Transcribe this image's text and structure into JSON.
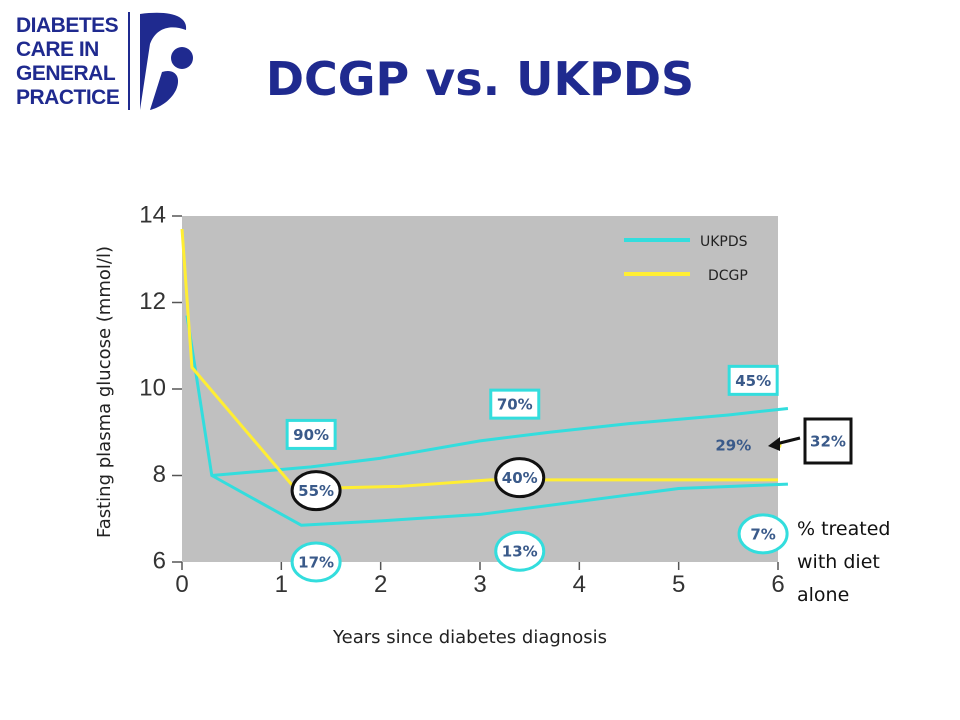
{
  "logo": {
    "lines": [
      "DIABETES",
      "CARE IN",
      "GENERAL",
      "PRACTICE"
    ],
    "brand_color": "#1f2a8f"
  },
  "title": "DCGP vs. UKPDS",
  "chart_data": {
    "type": "line",
    "title": "DCGP vs. UKPDS",
    "xlabel": "Years since diabetes diagnosis",
    "ylabel": "Fasting plasma glucose (mmol/l)",
    "xlim": [
      0,
      6
    ],
    "ylim": [
      6,
      14
    ],
    "x_ticks": [
      0,
      1,
      2,
      3,
      4,
      5,
      6
    ],
    "y_ticks": [
      6,
      8,
      10,
      12,
      14
    ],
    "background": "#c0c0c0",
    "legend_position": "top-right",
    "series": [
      {
        "name": "UKPDS",
        "color": "#33dddd",
        "x": [
          0.05,
          0.3,
          1.3,
          2.0,
          3.0,
          3.7,
          4.5,
          5.5,
          6.1
        ],
        "y": [
          11.7,
          8.0,
          8.2,
          8.4,
          8.8,
          9.0,
          9.2,
          9.4,
          9.55
        ]
      },
      {
        "name": "UKPDS",
        "color": "#33dddd",
        "x": [
          0.3,
          1.2,
          2.0,
          3.0,
          4.0,
          5.0,
          6.1
        ],
        "y": [
          8.0,
          6.85,
          6.95,
          7.1,
          7.4,
          7.7,
          7.8
        ]
      },
      {
        "name": "DCGP",
        "color": "#ffee33",
        "x": [
          0.0,
          0.1,
          1.1,
          1.3,
          2.2,
          3.1,
          4.0,
          5.0,
          6.0
        ],
        "y": [
          13.7,
          10.5,
          7.8,
          7.7,
          7.75,
          7.9,
          7.9,
          7.9,
          7.9
        ]
      }
    ],
    "dcgp_point": {
      "x": 6.0,
      "y": 8.7,
      "color": "#ffee33"
    },
    "annotations": [
      {
        "text": "90%",
        "x": 1.3,
        "y": 8.95,
        "shape": "box",
        "border": "#33dddd"
      },
      {
        "text": "70%",
        "x": 3.35,
        "y": 9.65,
        "shape": "box",
        "border": "#33dddd"
      },
      {
        "text": "45%",
        "x": 5.75,
        "y": 10.2,
        "shape": "box",
        "border": "#33dddd"
      },
      {
        "text": "55%",
        "x": 1.35,
        "y": 7.65,
        "shape": "ellipse",
        "border": "#111111"
      },
      {
        "text": "40%",
        "x": 3.4,
        "y": 7.95,
        "shape": "ellipse",
        "border": "#111111"
      },
      {
        "text": "29%",
        "x": 5.55,
        "y": 8.7,
        "shape": "none",
        "border": ""
      },
      {
        "text": "17%",
        "x": 1.35,
        "y": 6.0,
        "shape": "ellipse",
        "border": "#33dddd"
      },
      {
        "text": "13%",
        "x": 3.4,
        "y": 6.25,
        "shape": "ellipse",
        "border": "#33dddd"
      },
      {
        "text": "7%",
        "x": 5.85,
        "y": 6.65,
        "shape": "ellipse",
        "border": "#33dddd"
      }
    ],
    "callout": {
      "text": "32%",
      "border": "#111111"
    },
    "side_note": [
      "% treated",
      "with diet",
      "alone"
    ]
  }
}
